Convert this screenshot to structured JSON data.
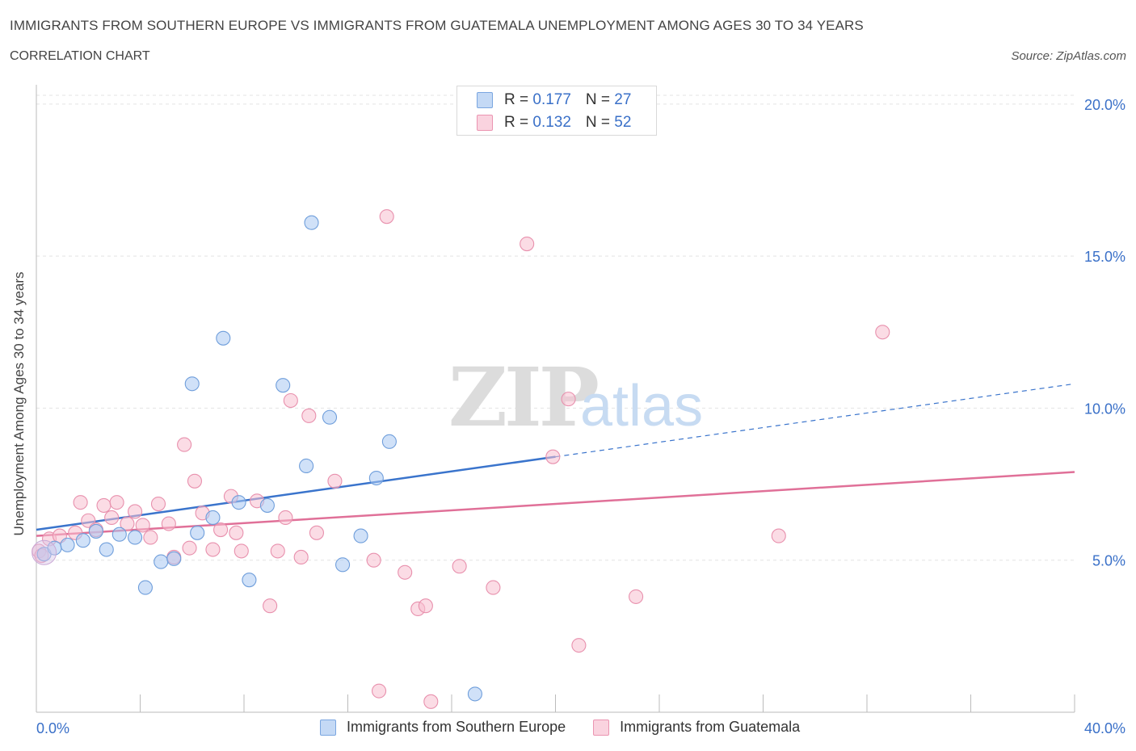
{
  "title": "IMMIGRANTS FROM SOUTHERN EUROPE VS IMMIGRANTS FROM GUATEMALA UNEMPLOYMENT AMONG AGES 30 TO 34 YEARS",
  "subtitle": "CORRELATION CHART",
  "source": "Source: ZipAtlas.com",
  "watermark": {
    "zip": "ZIP",
    "atlas": "atlas"
  },
  "legend_stats": [
    {
      "r_label": "R = ",
      "r_value": "0.177",
      "n_label": "N = ",
      "n_value": "27",
      "color": "#a9c8f2",
      "edge": "#7aa6e0"
    },
    {
      "r_label": "R = ",
      "r_value": "0.132",
      "n_label": "N = ",
      "n_value": "52",
      "color": "#f7bfd0",
      "edge": "#eb94b1"
    }
  ],
  "chart_data": {
    "type": "scatter",
    "title": "IMMIGRANTS FROM SOUTHERN EUROPE VS IMMIGRANTS FROM GUATEMALA UNEMPLOYMENT AMONG AGES 30 TO 34 YEARS",
    "xlabel": "",
    "ylabel": "Unemployment Among Ages 30 to 34 years",
    "xlim": [
      0,
      40
    ],
    "ylim": [
      0,
      20.5
    ],
    "x_tick_labels": [
      {
        "value": 0,
        "label": "0.0%"
      },
      {
        "value": 40,
        "label": "40.0%"
      }
    ],
    "y_tick_labels": [
      {
        "value": 5,
        "label": "5.0%"
      },
      {
        "value": 10,
        "label": "10.0%"
      },
      {
        "value": 15,
        "label": "15.0%"
      },
      {
        "value": 20,
        "label": "20.0%"
      }
    ],
    "grid": true,
    "series": [
      {
        "name": "Immigrants from Southern Europe",
        "color": "#a9c8f2",
        "edge": "#6f9edb",
        "line_color": "#3a74cc",
        "trend": {
          "x0": 0,
          "y0": 6.0,
          "x1": 20,
          "y1": 8.4,
          "extend_to": 40,
          "extend_y": 10.8
        },
        "points": [
          {
            "x": 0.3,
            "y": 5.2
          },
          {
            "x": 0.7,
            "y": 5.4
          },
          {
            "x": 1.2,
            "y": 5.5
          },
          {
            "x": 1.8,
            "y": 5.65
          },
          {
            "x": 2.3,
            "y": 5.95
          },
          {
            "x": 2.7,
            "y": 5.35
          },
          {
            "x": 3.2,
            "y": 5.85
          },
          {
            "x": 3.8,
            "y": 5.75
          },
          {
            "x": 4.2,
            "y": 4.1
          },
          {
            "x": 4.8,
            "y": 4.95
          },
          {
            "x": 5.3,
            "y": 5.05
          },
          {
            "x": 6.0,
            "y": 10.8
          },
          {
            "x": 6.2,
            "y": 5.9
          },
          {
            "x": 6.8,
            "y": 6.4
          },
          {
            "x": 7.2,
            "y": 12.3
          },
          {
            "x": 7.8,
            "y": 6.9
          },
          {
            "x": 8.2,
            "y": 4.35
          },
          {
            "x": 8.9,
            "y": 6.8
          },
          {
            "x": 9.5,
            "y": 10.75
          },
          {
            "x": 10.6,
            "y": 16.1
          },
          {
            "x": 10.4,
            "y": 8.1
          },
          {
            "x": 11.3,
            "y": 9.7
          },
          {
            "x": 11.8,
            "y": 4.85
          },
          {
            "x": 12.5,
            "y": 5.8
          },
          {
            "x": 13.1,
            "y": 7.7
          },
          {
            "x": 13.6,
            "y": 8.9
          },
          {
            "x": 16.9,
            "y": 0.6
          }
        ]
      },
      {
        "name": "Immigrants from Guatemala",
        "color": "#f7bfd0",
        "edge": "#e890ad",
        "line_color": "#e07098",
        "trend": {
          "x0": 0,
          "y0": 5.8,
          "x1": 40,
          "y1": 7.9
        },
        "points": [
          {
            "x": 0.1,
            "y": 5.3
          },
          {
            "x": 0.5,
            "y": 5.7
          },
          {
            "x": 0.9,
            "y": 5.8
          },
          {
            "x": 1.5,
            "y": 5.9
          },
          {
            "x": 1.7,
            "y": 6.9
          },
          {
            "x": 2.0,
            "y": 6.3
          },
          {
            "x": 2.3,
            "y": 6.0
          },
          {
            "x": 2.6,
            "y": 6.8
          },
          {
            "x": 2.9,
            "y": 6.4
          },
          {
            "x": 3.1,
            "y": 6.9
          },
          {
            "x": 3.5,
            "y": 6.2
          },
          {
            "x": 3.8,
            "y": 6.6
          },
          {
            "x": 4.1,
            "y": 6.15
          },
          {
            "x": 4.4,
            "y": 5.75
          },
          {
            "x": 4.7,
            "y": 6.85
          },
          {
            "x": 5.1,
            "y": 6.2
          },
          {
            "x": 5.3,
            "y": 5.1
          },
          {
            "x": 5.7,
            "y": 8.8
          },
          {
            "x": 5.9,
            "y": 5.4
          },
          {
            "x": 6.1,
            "y": 7.6
          },
          {
            "x": 6.4,
            "y": 6.55
          },
          {
            "x": 6.8,
            "y": 5.35
          },
          {
            "x": 7.1,
            "y": 6.0
          },
          {
            "x": 7.5,
            "y": 7.1
          },
          {
            "x": 7.7,
            "y": 5.9
          },
          {
            "x": 7.9,
            "y": 5.3
          },
          {
            "x": 8.5,
            "y": 6.95
          },
          {
            "x": 9.0,
            "y": 3.5
          },
          {
            "x": 9.3,
            "y": 5.3
          },
          {
            "x": 9.6,
            "y": 6.4
          },
          {
            "x": 9.8,
            "y": 10.25
          },
          {
            "x": 10.2,
            "y": 5.1
          },
          {
            "x": 10.5,
            "y": 9.75
          },
          {
            "x": 10.8,
            "y": 5.9
          },
          {
            "x": 11.5,
            "y": 7.6
          },
          {
            "x": 13.0,
            "y": 5.0
          },
          {
            "x": 13.2,
            "y": 0.7
          },
          {
            "x": 13.5,
            "y": 16.3
          },
          {
            "x": 14.2,
            "y": 4.6
          },
          {
            "x": 14.7,
            "y": 3.4
          },
          {
            "x": 15.0,
            "y": 3.5
          },
          {
            "x": 15.2,
            "y": 0.35
          },
          {
            "x": 16.3,
            "y": 4.8
          },
          {
            "x": 17.6,
            "y": 4.1
          },
          {
            "x": 18.9,
            "y": 15.4
          },
          {
            "x": 19.9,
            "y": 8.4
          },
          {
            "x": 20.5,
            "y": 10.3
          },
          {
            "x": 20.9,
            "y": 2.2
          },
          {
            "x": 23.1,
            "y": 3.8
          },
          {
            "x": 28.6,
            "y": 5.8
          },
          {
            "x": 32.6,
            "y": 12.5
          },
          {
            "x": 0.2,
            "y": 5.15
          }
        ]
      }
    ]
  }
}
